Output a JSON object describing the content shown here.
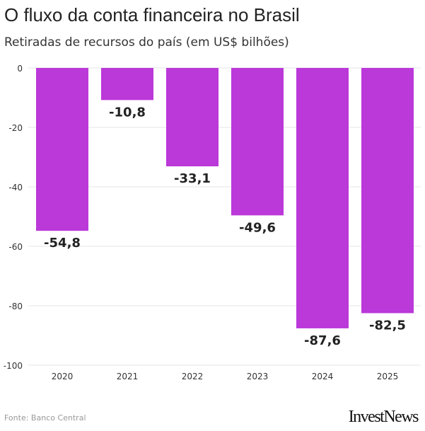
{
  "title": "O fluxo da conta financeira no Brasil",
  "subtitle": "Retiradas de recursos do país (em US$ bilhões)",
  "source": "Fonte: Banco Central",
  "logo": "InvestNews",
  "chart_data": {
    "type": "bar",
    "title": "O fluxo da conta financeira no Brasil",
    "subtitle": "Retiradas de recursos do país (em US$ bilhões)",
    "categories": [
      "2020",
      "2021",
      "2022",
      "2023",
      "2024",
      "2025"
    ],
    "values": [
      -54.8,
      -10.8,
      -33.1,
      -49.6,
      -87.6,
      -82.5
    ],
    "labels": [
      "-54,8",
      "-10,8",
      "-33,1",
      "-49,6",
      "-87,6",
      "-82,5"
    ],
    "ylim": [
      -100,
      0
    ],
    "yticks": [
      0,
      -20,
      -40,
      -60,
      -80,
      -100
    ],
    "grid": true,
    "color": "#bb38d9"
  }
}
